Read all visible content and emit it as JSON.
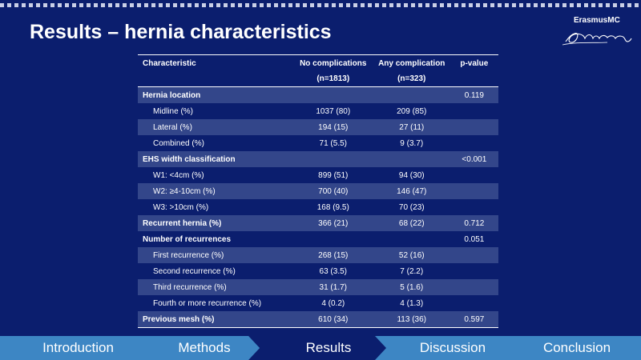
{
  "slide": {
    "title": "Results – hernia characteristics"
  },
  "logo": {
    "text": "ErasmusMC",
    "mark": "Erasmus signature logo"
  },
  "table": {
    "headers": {
      "characteristic": "Characteristic",
      "no_complications": "No complications",
      "no_complications_n": "(n=1813)",
      "any_complication": "Any complication",
      "any_complication_n": "(n=323)",
      "pvalue": "p-value"
    },
    "rows": [
      {
        "label": "Hernia location",
        "no": "",
        "any": "",
        "p": "0.119"
      },
      {
        "label": "Midline (%)",
        "no": "1037 (80)",
        "any": "209 (85)",
        "p": ""
      },
      {
        "label": "Lateral (%)",
        "no": "194 (15)",
        "any": "27 (11)",
        "p": ""
      },
      {
        "label": "Combined (%)",
        "no": "71 (5.5)",
        "any": "9 (3.7)",
        "p": ""
      },
      {
        "label": "EHS width classification",
        "no": "",
        "any": "",
        "p": "<0.001"
      },
      {
        "label": "W1: <4cm (%)",
        "no": "899 (51)",
        "any": "94 (30)",
        "p": ""
      },
      {
        "label": "W2: ≥4-10cm (%)",
        "no": "700 (40)",
        "any": "146 (47)",
        "p": ""
      },
      {
        "label": "W3: >10cm (%)",
        "no": "168 (9.5)",
        "any": "70 (23)",
        "p": ""
      },
      {
        "label": "Recurrent hernia (%)",
        "no": "366 (21)",
        "any": "68 (22)",
        "p": "0.712"
      },
      {
        "label": "Number of recurrences",
        "no": "",
        "any": "",
        "p": "0.051"
      },
      {
        "label": "First recurrence (%)",
        "no": "268 (15)",
        "any": "52 (16)",
        "p": ""
      },
      {
        "label": "Second recurrence (%)",
        "no": "63 (3.5)",
        "any": "7 (2.2)",
        "p": ""
      },
      {
        "label": "Third recurrence (%)",
        "no": "31 (1.7)",
        "any": "5 (1.6)",
        "p": ""
      },
      {
        "label": "Fourth or more recurrence (%)",
        "no": "4 (0.2)",
        "any": "4 (1.3)",
        "p": ""
      },
      {
        "label": "Previous mesh (%)",
        "no": "610 (34)",
        "any": "113 (36)",
        "p": "0.597"
      }
    ]
  },
  "nav": {
    "items": [
      "Introduction",
      "Methods",
      "Results",
      "Discussion",
      "Conclusion"
    ],
    "active": "Results"
  },
  "colors": {
    "background": "#0b1e6e",
    "row_shade": "#33468a",
    "nav": "#3d86c4",
    "nav_active": "#0b1e6e"
  }
}
